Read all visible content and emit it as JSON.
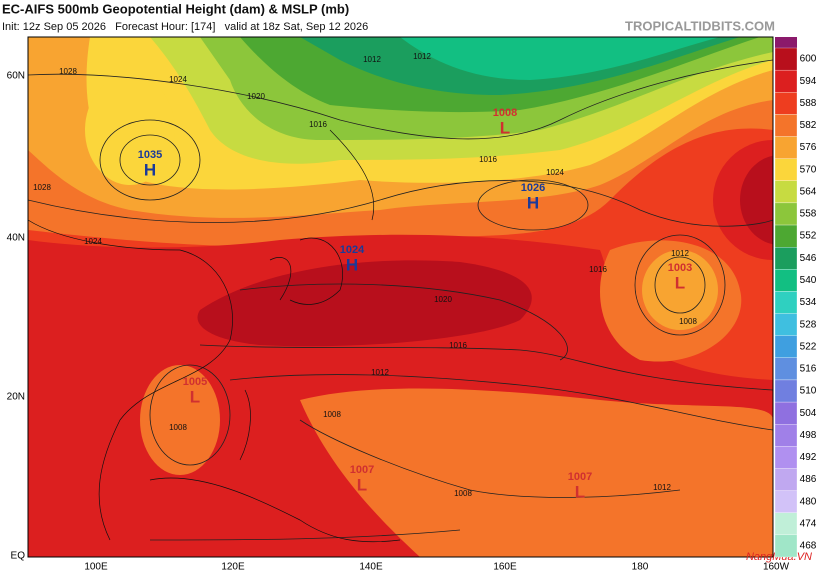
{
  "header": {
    "title": "EC-AIFS 500mb Geopotential Height (dam) & MSLP (mb)",
    "subtitle": "Init: 12z Sep 05 2026   Forecast Hour: [174]   valid at 18z Sat, Sep 12 2026",
    "site": "TROPICALTIDBITS.COM"
  },
  "latitude_labels": [
    "60N",
    "40N",
    "20N",
    "EQ"
  ],
  "longitude_labels": [
    "100E",
    "120E",
    "140E",
    "160E",
    "180",
    "160W"
  ],
  "colorbar": {
    "ticks": [
      600,
      594,
      588,
      582,
      576,
      570,
      564,
      558,
      552,
      546,
      540,
      534,
      528,
      522,
      516,
      510,
      504,
      498,
      492,
      486,
      480,
      474,
      468
    ],
    "colors": [
      "#b80f1c",
      "#dc1f1f",
      "#ee3d1f",
      "#f4742a",
      "#f8a431",
      "#fbd63b",
      "#c7db41",
      "#8cc63b",
      "#4da832",
      "#1b9e5e",
      "#12bf82",
      "#2fd0c0",
      "#3fbfe0",
      "#3f9fe0",
      "#5f8fe0",
      "#707fe0",
      "#8f70e0",
      "#a080e8",
      "#b090f0",
      "#c0a8f0",
      "#d2c2f8",
      "#c0efd8",
      "#a0e6c8"
    ]
  },
  "pressure_centers": [
    {
      "type": "H",
      "value": "1035"
    },
    {
      "type": "H",
      "value": "1026"
    },
    {
      "type": "H",
      "value": "1024"
    },
    {
      "type": "L",
      "value": "1008"
    },
    {
      "type": "L",
      "value": "1003"
    },
    {
      "type": "L",
      "value": "1005"
    },
    {
      "type": "L",
      "value": "1007"
    },
    {
      "type": "L",
      "value": "1007"
    }
  ],
  "isobar_labels": [
    "1028",
    "1024",
    "1020",
    "1016",
    "1012",
    "1012",
    "1016",
    "1024",
    "1020",
    "1016",
    "1012",
    "1016",
    "1012",
    "1008",
    "1008",
    "1008",
    "1008",
    "1012",
    "1028",
    "1024"
  ],
  "watermark": "NangMua.VN"
}
